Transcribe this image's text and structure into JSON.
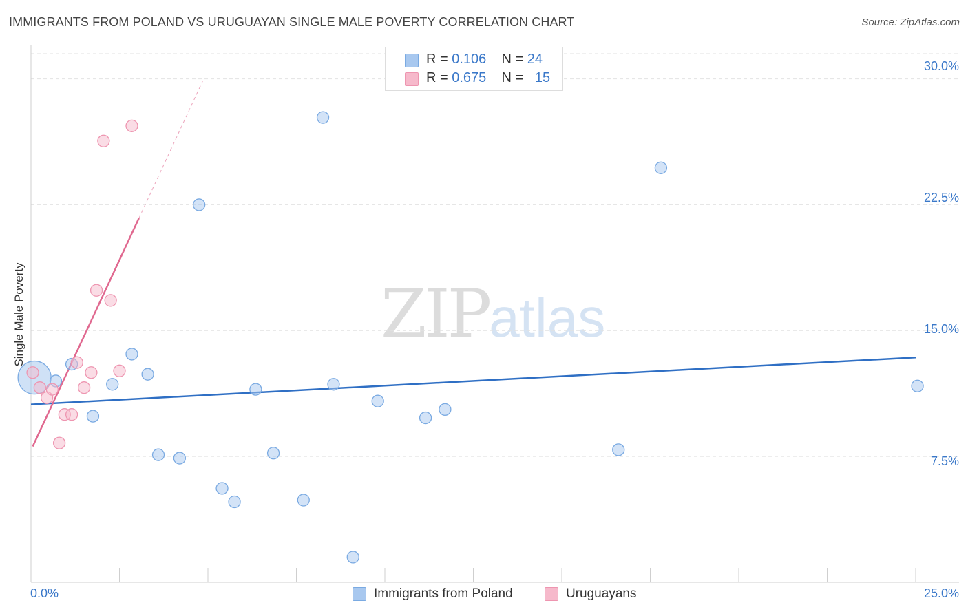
{
  "title": "IMMIGRANTS FROM POLAND VS URUGUAYAN SINGLE MALE POVERTY CORRELATION CHART",
  "source": "Source: ZipAtlas.com",
  "watermark": {
    "zip": "ZIP",
    "atlas": "atlas"
  },
  "legend": {
    "rows": [
      {
        "r_label": "R = ",
        "r_value": "0.106",
        "n_label": "N = ",
        "n_value": "24",
        "color": "#a8c8ef"
      },
      {
        "r_label": "R = ",
        "r_value": "0.675",
        "n_label": "N = ",
        "n_value": "15",
        "color": "#f6b9cb"
      }
    ]
  },
  "chart_data": {
    "type": "scatter",
    "title": "IMMIGRANTS FROM POLAND VS URUGUAYAN SINGLE MALE POVERTY CORRELATION CHART",
    "xlabel": "",
    "ylabel": "Single Male Poverty",
    "xlim": [
      0,
      25
    ],
    "ylim": [
      0,
      31.5
    ],
    "x_tick_labels": {
      "min": "0.0%",
      "max": "25.0%"
    },
    "y_ticks": [
      {
        "value": 7.5,
        "label": "7.5%"
      },
      {
        "value": 15.0,
        "label": "15.0%"
      },
      {
        "value": 22.5,
        "label": "22.5%"
      },
      {
        "value": 30.0,
        "label": "30.0%"
      }
    ],
    "series": [
      {
        "name": "Immigrants from Poland",
        "color": "#a8c8ef",
        "stroke": "#7aaae2",
        "line_color": "#2f6fc4",
        "trend": {
          "x": [
            0,
            25
          ],
          "y": [
            10.6,
            13.4
          ],
          "dashed_x": null
        },
        "points": [
          {
            "x": 0.1,
            "y": 12.2,
            "big": true
          },
          {
            "x": 0.7,
            "y": 12.0
          },
          {
            "x": 1.15,
            "y": 13.0
          },
          {
            "x": 1.75,
            "y": 9.9
          },
          {
            "x": 2.3,
            "y": 11.8
          },
          {
            "x": 2.85,
            "y": 13.6
          },
          {
            "x": 3.3,
            "y": 12.4
          },
          {
            "x": 3.6,
            "y": 7.6
          },
          {
            "x": 4.2,
            "y": 7.4
          },
          {
            "x": 4.75,
            "y": 22.5
          },
          {
            "x": 5.4,
            "y": 5.6
          },
          {
            "x": 5.75,
            "y": 4.8
          },
          {
            "x": 6.35,
            "y": 11.5
          },
          {
            "x": 6.85,
            "y": 7.7
          },
          {
            "x": 7.7,
            "y": 4.9
          },
          {
            "x": 8.25,
            "y": 27.7
          },
          {
            "x": 8.55,
            "y": 11.8
          },
          {
            "x": 9.1,
            "y": 1.5
          },
          {
            "x": 9.8,
            "y": 10.8
          },
          {
            "x": 11.15,
            "y": 9.8
          },
          {
            "x": 11.7,
            "y": 10.3
          },
          {
            "x": 16.6,
            "y": 7.9
          },
          {
            "x": 17.8,
            "y": 24.7
          },
          {
            "x": 25.05,
            "y": 11.7
          }
        ]
      },
      {
        "name": "Uruguayans",
        "color": "#f6b9cb",
        "stroke": "#ee95b0",
        "line_color": "#e0688f",
        "trend": {
          "x": [
            0.05,
            3.05
          ],
          "y": [
            8.1,
            21.7
          ],
          "dashed_x": [
            3.05,
            4.85
          ]
        },
        "points": [
          {
            "x": 0.05,
            "y": 12.5
          },
          {
            "x": 0.25,
            "y": 11.6
          },
          {
            "x": 0.45,
            "y": 11.0
          },
          {
            "x": 0.6,
            "y": 11.5
          },
          {
            "x": 0.8,
            "y": 8.3
          },
          {
            "x": 0.95,
            "y": 10.0
          },
          {
            "x": 1.15,
            "y": 10.0
          },
          {
            "x": 1.3,
            "y": 13.1
          },
          {
            "x": 1.5,
            "y": 11.6
          },
          {
            "x": 1.7,
            "y": 12.5
          },
          {
            "x": 1.85,
            "y": 17.4
          },
          {
            "x": 2.05,
            "y": 26.3
          },
          {
            "x": 2.25,
            "y": 16.8
          },
          {
            "x": 2.5,
            "y": 12.6
          },
          {
            "x": 2.85,
            "y": 27.2
          }
        ]
      }
    ]
  },
  "bottom_legend": [
    {
      "label": "Immigrants from Poland",
      "color": "#a8c8ef"
    },
    {
      "label": "Uruguayans",
      "color": "#f6b9cb"
    }
  ]
}
